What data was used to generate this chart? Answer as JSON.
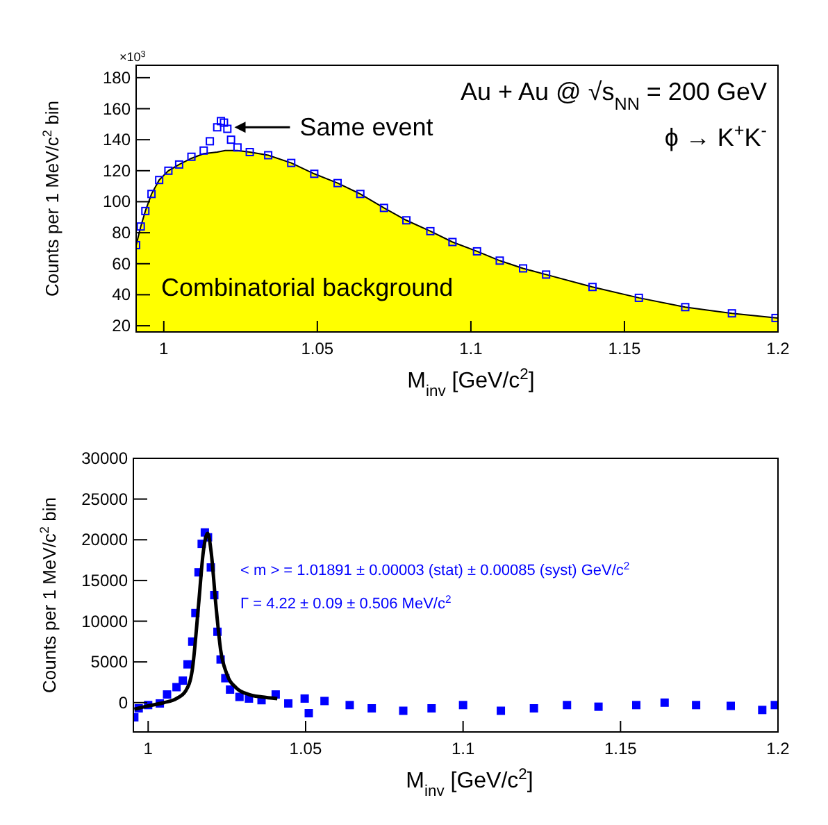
{
  "chart_data": [
    {
      "type": "scatter",
      "xlabel": "M$_{inv}$ [GeV/c$^{2}$]",
      "ylabel": "Counts per 1 MeV/c$^{2}$ bin",
      "xlim": [
        0.991,
        1.2
      ],
      "xticks": [
        1,
        1.05,
        1.1,
        1.15,
        1.2
      ],
      "ylim": [
        16,
        188
      ],
      "yticks": [
        20,
        40,
        60,
        80,
        100,
        120,
        140,
        160,
        180
      ],
      "annotations": [
        "Au + Au @ √s$_{NN}$ = 200 GeV",
        "ϕ → K$^{+}$K$^{-}$",
        "×10$^{3}$",
        {
          "text": "Same event",
          "x": 1.023,
          "y": 148
        }
      ],
      "series": [
        {
          "name": "Combinatorial background",
          "type": "area",
          "color": "#ffff00",
          "x": [
            0.991,
            0.9925,
            0.994,
            0.996,
            0.9985,
            1.0015,
            1.005,
            1.009,
            1.013,
            1.0174,
            1.02,
            1.024,
            1.028,
            1.034,
            1.0415,
            1.049,
            1.0566,
            1.064,
            1.0717,
            1.079,
            1.0868,
            1.094,
            1.102,
            1.1094,
            1.117,
            1.1245,
            1.1396,
            1.1547,
            1.1698,
            1.185,
            1.2
          ],
          "values": [
            72,
            84,
            94,
            105,
            114,
            120,
            124,
            128,
            131,
            132,
            133,
            133,
            132,
            130,
            125,
            118,
            112,
            105,
            96,
            88,
            81,
            74,
            68,
            62,
            57,
            53,
            45,
            38,
            32,
            28,
            25
          ]
        },
        {
          "marker": "square",
          "color": "#0000ff",
          "x": [
            0.991,
            0.9925,
            0.994,
            0.996,
            0.9985,
            1.0015,
            1.005,
            1.009,
            1.013,
            1.015,
            1.0174,
            1.0186,
            1.0196,
            1.0207,
            1.0219,
            1.024,
            1.028,
            1.034,
            1.0415,
            1.049,
            1.0566,
            1.064,
            1.0717,
            1.079,
            1.0868,
            1.094,
            1.102,
            1.1094,
            1.117,
            1.1245,
            1.1396,
            1.1547,
            1.1698,
            1.185,
            1.1992
          ],
          "values": [
            72,
            84,
            94,
            105,
            114,
            120,
            124,
            129,
            133,
            139,
            148,
            152,
            151,
            147,
            140,
            135,
            132,
            130,
            125,
            118,
            112,
            105,
            96,
            88,
            81,
            74,
            68,
            62,
            57,
            53,
            45,
            38,
            32,
            28,
            25
          ]
        }
      ]
    },
    {
      "type": "scatter",
      "xlabel": "M$_{inv}$ [GeV/c$^{2}$]",
      "ylabel": "Counts per 1 MeV/c$^{2}$ bin",
      "xlim": [
        0.9953,
        1.2
      ],
      "xticks": [
        1,
        1.05,
        1.1,
        1.15,
        1.2
      ],
      "ylim": [
        -3600,
        30000
      ],
      "yticks": [
        0,
        5000,
        10000,
        15000,
        20000,
        25000,
        30000
      ],
      "annotations": [
        "< m > = 1.01891 ± 0.00003 (stat) ± 0.00085 (syst) GeV/c$^{2}$",
        "Γ = 4.22 ± 0.09 ± 0.506 MeV/c$^{2}$"
      ],
      "series": [
        {
          "marker": "square",
          "color": "#0000ff",
          "x": [
            0.9956,
            0.997,
            1.0,
            1.0037,
            1.006,
            1.009,
            1.011,
            1.0125,
            1.014,
            1.015,
            1.016,
            1.017,
            1.018,
            1.019,
            1.0199,
            1.021,
            1.022,
            1.023,
            1.0245,
            1.026,
            1.029,
            1.032,
            1.036,
            1.0405,
            1.0445,
            1.0497,
            1.051,
            1.056,
            1.064,
            1.071,
            1.081,
            1.09,
            1.1,
            1.112,
            1.1225,
            1.133,
            1.143,
            1.155,
            1.164,
            1.174,
            1.185,
            1.195,
            1.199
          ],
          "values": [
            -1800,
            -700,
            -300,
            -100,
            1000,
            1900,
            2700,
            4700,
            7500,
            11000,
            16000,
            19500,
            20900,
            20300,
            16600,
            13200,
            8700,
            5300,
            3000,
            1600,
            700,
            500,
            300,
            1000,
            -100,
            500,
            -1300,
            200,
            -300,
            -700,
            -1000,
            -700,
            -300,
            -1000,
            -700,
            -300,
            -500,
            -300,
            0,
            -300,
            -400,
            -900,
            -300
          ]
        },
        {
          "type": "line",
          "color": "#000000",
          "x": [
            0.9956,
            1.0,
            1.005,
            1.009,
            1.012,
            1.014,
            1.016,
            1.0175,
            1.0189,
            1.02,
            1.0215,
            1.023,
            1.025,
            1.028,
            1.032,
            1.036,
            1.041
          ],
          "values": [
            -800,
            -400,
            0,
            500,
            1500,
            4000,
            12000,
            18500,
            20800,
            18500,
            12000,
            6500,
            3500,
            1800,
            1000,
            700,
            500
          ]
        }
      ]
    }
  ]
}
